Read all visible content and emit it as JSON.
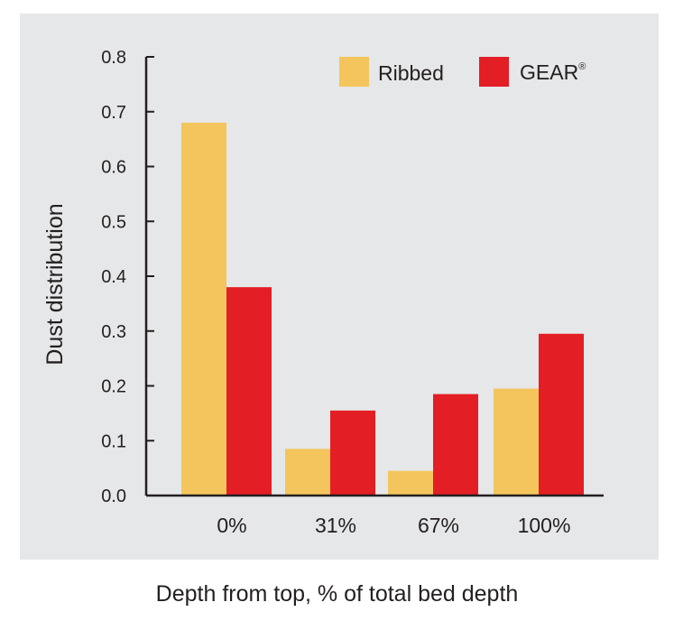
{
  "chart_data": {
    "type": "bar",
    "xlabel": "Depth from top, % of total bed depth",
    "ylabel": "Dust distribution",
    "categories": [
      "0%",
      "31%",
      "67%",
      "100%"
    ],
    "series": [
      {
        "name": "Ribbed",
        "values": [
          0.68,
          0.085,
          0.045,
          0.195
        ],
        "color": "#f4c55c"
      },
      {
        "name": "GEAR",
        "values": [
          0.38,
          0.155,
          0.185,
          0.295
        ],
        "color": "#e31e24"
      }
    ],
    "legend_marks": [
      "",
      "®"
    ],
    "ylim": [
      0,
      0.8
    ],
    "yticks": [
      "0.0",
      "0.1",
      "0.2",
      "0.3",
      "0.4",
      "0.5",
      "0.6",
      "0.7",
      "0.8"
    ],
    "grid": false,
    "legend_position": "top-right",
    "background": "#e6e7e8"
  }
}
